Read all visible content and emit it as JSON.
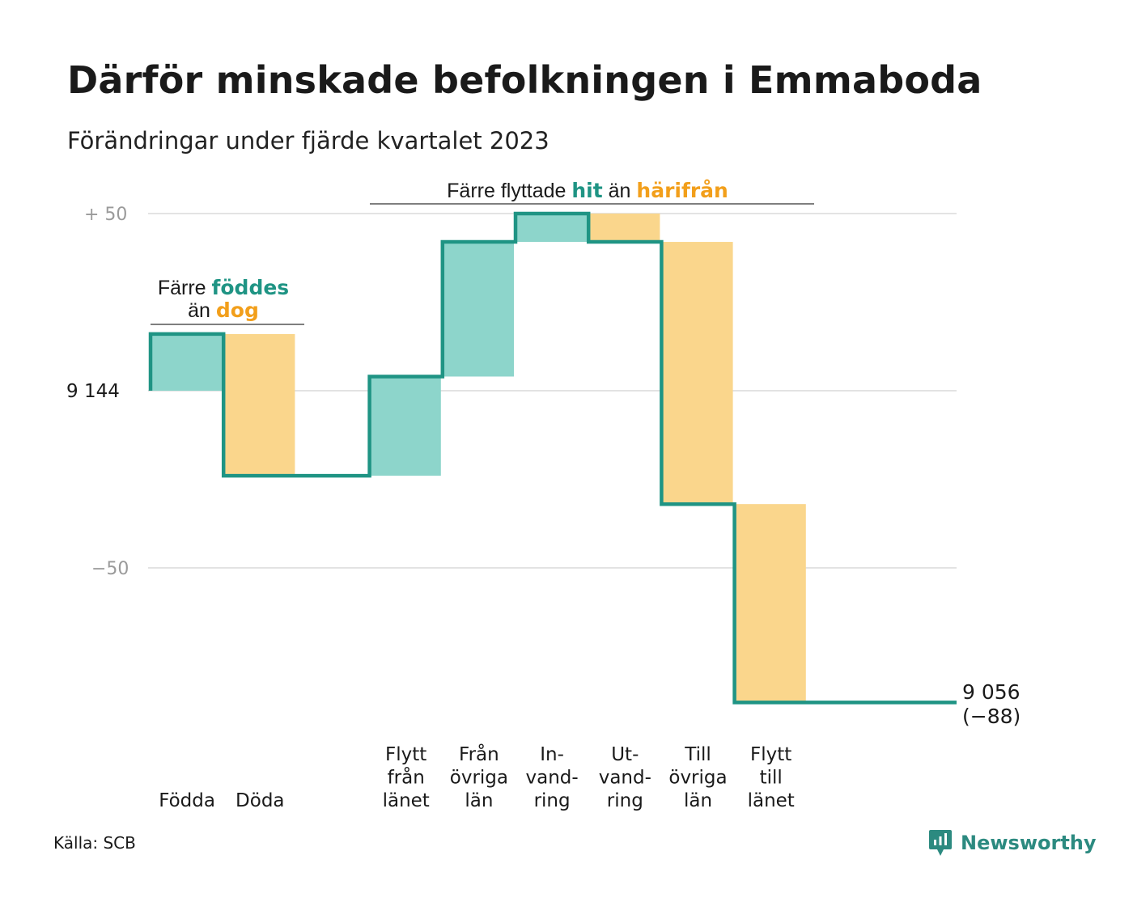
{
  "title": "Därför minskade befolkningen i Emmaboda",
  "subtitle": "Förändringar under fjärde kvartalet 2023",
  "source": "Källa: SCB",
  "brand": {
    "name": "Newsworthy",
    "icon": "newsworthy-logo-icon"
  },
  "colors": {
    "increase_fill": "#8dd5cb",
    "decrease_fill": "#fad68c",
    "line": "#1f9484",
    "teal_text": "#1f9484",
    "orange_text": "#f29f1b",
    "grid": "#e3e3e3",
    "tick_gray": "#9a9a9a"
  },
  "annotations": {
    "births": {
      "line1_a": "Färre ",
      "line1_b": "föddes",
      "line2_a": "än ",
      "line2_b": "dog"
    },
    "moves": {
      "a": "Färre flyttade ",
      "b": "hit",
      "c": " än ",
      "d": "härifrån"
    }
  },
  "chart_data": {
    "type": "waterfall",
    "start_value": 9144,
    "end_value": 9056,
    "end_change": -88,
    "yticks": [
      {
        "value": 50,
        "label": "+  50"
      },
      {
        "value": 0,
        "label": "9  144"
      },
      {
        "value": -50,
        "label": "−50"
      }
    ],
    "ylim": [
      -88,
      50
    ],
    "steps": [
      {
        "label_lines": [
          "Födda"
        ],
        "change": 16
      },
      {
        "label_lines": [
          "Döda"
        ],
        "change": -40
      },
      {
        "label_lines": [],
        "change": 0
      },
      {
        "label_lines": [
          "Flytt",
          "från",
          "länet"
        ],
        "change": 28
      },
      {
        "label_lines": [
          "Från",
          "övriga",
          "län"
        ],
        "change": 38
      },
      {
        "label_lines": [
          "In-",
          "vand-",
          "ring"
        ],
        "change": 8
      },
      {
        "label_lines": [
          "Ut-",
          "vand-",
          "ring"
        ],
        "change": -8
      },
      {
        "label_lines": [
          "Till",
          "övriga",
          "län"
        ],
        "change": -74
      },
      {
        "label_lines": [
          "Flytt",
          "till",
          "länet"
        ],
        "change": -56
      },
      {
        "label_lines": [],
        "change": 0
      }
    ],
    "end_label_lines": [
      "9 056",
      "(−88)"
    ]
  }
}
